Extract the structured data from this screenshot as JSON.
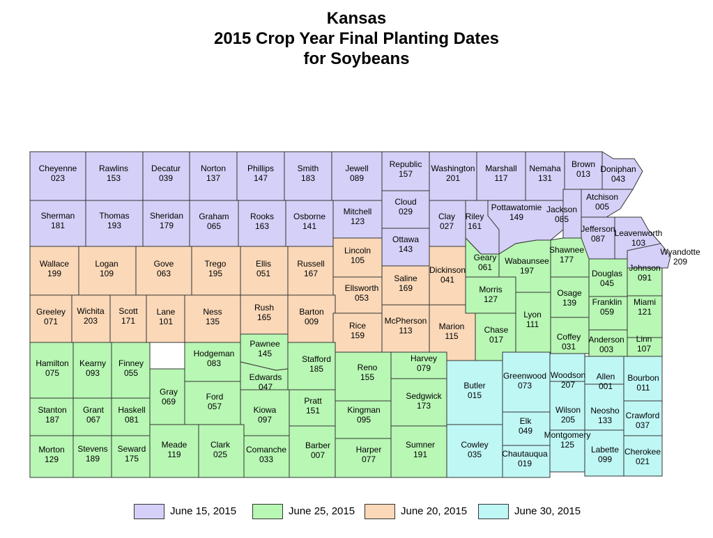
{
  "title_lines": [
    "Kansas",
    "2015 Crop Year Final Planting Dates",
    "for Soybeans"
  ],
  "colors": {
    "june15": "#d5d0f7",
    "june25": "#b8f7b4",
    "june20": "#fad8b8",
    "june30": "#bff7f5"
  },
  "legend": [
    {
      "label": "June 15, 2015",
      "color_key": "june15"
    },
    {
      "label": "June 25, 2015",
      "color_key": "june25"
    },
    {
      "label": "June 20, 2015",
      "color_key": "june20"
    },
    {
      "label": "June 30, 2015",
      "color_key": "june30"
    }
  ],
  "counties": [
    {
      "name": "Cheyenne",
      "code": "023",
      "group": "june15"
    },
    {
      "name": "Rawlins",
      "code": "153",
      "group": "june15"
    },
    {
      "name": "Decatur",
      "code": "039",
      "group": "june15"
    },
    {
      "name": "Norton",
      "code": "137",
      "group": "june15"
    },
    {
      "name": "Phillips",
      "code": "147",
      "group": "june15"
    },
    {
      "name": "Smith",
      "code": "183",
      "group": "june15"
    },
    {
      "name": "Jewell",
      "code": "089",
      "group": "june15"
    },
    {
      "name": "Republic",
      "code": "157",
      "group": "june15"
    },
    {
      "name": "Washington",
      "code": "201",
      "group": "june15"
    },
    {
      "name": "Marshall",
      "code": "117",
      "group": "june15"
    },
    {
      "name": "Nemaha",
      "code": "131",
      "group": "june15"
    },
    {
      "name": "Brown",
      "code": "013",
      "group": "june15"
    },
    {
      "name": "Doniphan",
      "code": "043",
      "group": "june15"
    },
    {
      "name": "Sherman",
      "code": "181",
      "group": "june15"
    },
    {
      "name": "Thomas",
      "code": "193",
      "group": "june15"
    },
    {
      "name": "Sheridan",
      "code": "179",
      "group": "june15"
    },
    {
      "name": "Graham",
      "code": "065",
      "group": "june15"
    },
    {
      "name": "Rooks",
      "code": "163",
      "group": "june15"
    },
    {
      "name": "Osborne",
      "code": "141",
      "group": "june15"
    },
    {
      "name": "Mitchell",
      "code": "123",
      "group": "june15"
    },
    {
      "name": "Cloud",
      "code": "029",
      "group": "june15"
    },
    {
      "name": "Clay",
      "code": "027",
      "group": "june15"
    },
    {
      "name": "Riley",
      "code": "161",
      "group": "june15"
    },
    {
      "name": "Pottawatomie",
      "code": "149",
      "group": "june15"
    },
    {
      "name": "Jackson",
      "code": "085",
      "group": "june15"
    },
    {
      "name": "Atchison",
      "code": "005",
      "group": "june15"
    },
    {
      "name": "Jefferson",
      "code": "087",
      "group": "june15"
    },
    {
      "name": "Leavenworth",
      "code": "103",
      "group": "june15"
    },
    {
      "name": "Ottawa",
      "code": "143",
      "group": "june15"
    },
    {
      "name": "Wyandotte",
      "code": "209",
      "group": "june15"
    },
    {
      "name": "Wallace",
      "code": "199",
      "group": "june20"
    },
    {
      "name": "Logan",
      "code": "109",
      "group": "june20"
    },
    {
      "name": "Gove",
      "code": "063",
      "group": "june20"
    },
    {
      "name": "Trego",
      "code": "195",
      "group": "june20"
    },
    {
      "name": "Ellis",
      "code": "051",
      "group": "june20"
    },
    {
      "name": "Russell",
      "code": "167",
      "group": "june20"
    },
    {
      "name": "Lincoln",
      "code": "105",
      "group": "june20"
    },
    {
      "name": "Ellsworth",
      "code": "053",
      "group": "june20"
    },
    {
      "name": "Saline",
      "code": "169",
      "group": "june20"
    },
    {
      "name": "Dickinson",
      "code": "041",
      "group": "june20"
    },
    {
      "name": "Greeley",
      "code": "071",
      "group": "june20"
    },
    {
      "name": "Wichita",
      "code": "203",
      "group": "june20"
    },
    {
      "name": "Scott",
      "code": "171",
      "group": "june20"
    },
    {
      "name": "Lane",
      "code": "101",
      "group": "june20"
    },
    {
      "name": "Ness",
      "code": "135",
      "group": "june20"
    },
    {
      "name": "Rush",
      "code": "165",
      "group": "june20"
    },
    {
      "name": "Barton",
      "code": "009",
      "group": "june20"
    },
    {
      "name": "Rice",
      "code": "159",
      "group": "june20"
    },
    {
      "name": "McPherson",
      "code": "113",
      "group": "june20"
    },
    {
      "name": "Marion",
      "code": "115",
      "group": "june20"
    },
    {
      "name": "Geary",
      "code": "061",
      "group": "june25"
    },
    {
      "name": "Wabaunsee",
      "code": "197",
      "group": "june25"
    },
    {
      "name": "Shawnee",
      "code": "177",
      "group": "june25"
    },
    {
      "name": "Douglas",
      "code": "045",
      "group": "june25"
    },
    {
      "name": "Johnson",
      "code": "091",
      "group": "june25"
    },
    {
      "name": "Morris",
      "code": "127",
      "group": "june25"
    },
    {
      "name": "Osage",
      "code": "139",
      "group": "june25"
    },
    {
      "name": "Franklin",
      "code": "059",
      "group": "june25"
    },
    {
      "name": "Miami",
      "code": "121",
      "group": "june25"
    },
    {
      "name": "Lyon",
      "code": "111",
      "group": "june25"
    },
    {
      "name": "Chase",
      "code": "017",
      "group": "june25"
    },
    {
      "name": "Coffey",
      "code": "031",
      "group": "june25"
    },
    {
      "name": "Anderson",
      "code": "003",
      "group": "june25"
    },
    {
      "name": "Linn",
      "code": "107",
      "group": "june25"
    },
    {
      "name": "Hamilton",
      "code": "075",
      "group": "june25"
    },
    {
      "name": "Kearny",
      "code": "093",
      "group": "june25"
    },
    {
      "name": "Finney",
      "code": "055",
      "group": "june25"
    },
    {
      "name": "Hodgeman",
      "code": "083",
      "group": "june25"
    },
    {
      "name": "Pawnee",
      "code": "145",
      "group": "june25"
    },
    {
      "name": "Stafford",
      "code": "185",
      "group": "june25"
    },
    {
      "name": "Reno",
      "code": "155",
      "group": "june25"
    },
    {
      "name": "Harvey",
      "code": "079",
      "group": "june25"
    },
    {
      "name": "Gray",
      "code": "069",
      "group": "june25"
    },
    {
      "name": "Ford",
      "code": "057",
      "group": "june25"
    },
    {
      "name": "Edwards",
      "code": "047",
      "group": "june25"
    },
    {
      "name": "Kiowa",
      "code": "097",
      "group": "june25"
    },
    {
      "name": "Pratt",
      "code": "151",
      "group": "june25"
    },
    {
      "name": "Kingman",
      "code": "095",
      "group": "june25"
    },
    {
      "name": "Sedgwick",
      "code": "173",
      "group": "june25"
    },
    {
      "name": "Stanton",
      "code": "187",
      "group": "june25"
    },
    {
      "name": "Grant",
      "code": "067",
      "group": "june25"
    },
    {
      "name": "Haskell",
      "code": "081",
      "group": "june25"
    },
    {
      "name": "Meade",
      "code": "119",
      "group": "june25"
    },
    {
      "name": "Clark",
      "code": "025",
      "group": "june25"
    },
    {
      "name": "Comanche",
      "code": "033",
      "group": "june25"
    },
    {
      "name": "Barber",
      "code": "007",
      "group": "june25"
    },
    {
      "name": "Harper",
      "code": "077",
      "group": "june25"
    },
    {
      "name": "Sumner",
      "code": "191",
      "group": "june25"
    },
    {
      "name": "Morton",
      "code": "129",
      "group": "june25"
    },
    {
      "name": "Stevens",
      "code": "189",
      "group": "june25"
    },
    {
      "name": "Seward",
      "code": "175",
      "group": "june25"
    },
    {
      "name": "Butler",
      "code": "015",
      "group": "june30"
    },
    {
      "name": "Greenwood",
      "code": "073",
      "group": "june30"
    },
    {
      "name": "Woodson",
      "code": "207",
      "group": "june30"
    },
    {
      "name": "Allen",
      "code": "001",
      "group": "june30"
    },
    {
      "name": "Bourbon",
      "code": "011",
      "group": "june30"
    },
    {
      "name": "Wilson",
      "code": "205",
      "group": "june30"
    },
    {
      "name": "Neosho",
      "code": "133",
      "group": "june30"
    },
    {
      "name": "Crawford",
      "code": "037",
      "group": "june30"
    },
    {
      "name": "Elk",
      "code": "049",
      "group": "june30"
    },
    {
      "name": "Montgomery",
      "code": "125",
      "group": "june30"
    },
    {
      "name": "Labette",
      "code": "099",
      "group": "june30"
    },
    {
      "name": "Cherokee",
      "code": "021",
      "group": "june30"
    },
    {
      "name": "Cowley",
      "code": "035",
      "group": "june30"
    },
    {
      "name": "Chautauqua",
      "code": "019",
      "group": "june30"
    }
  ]
}
